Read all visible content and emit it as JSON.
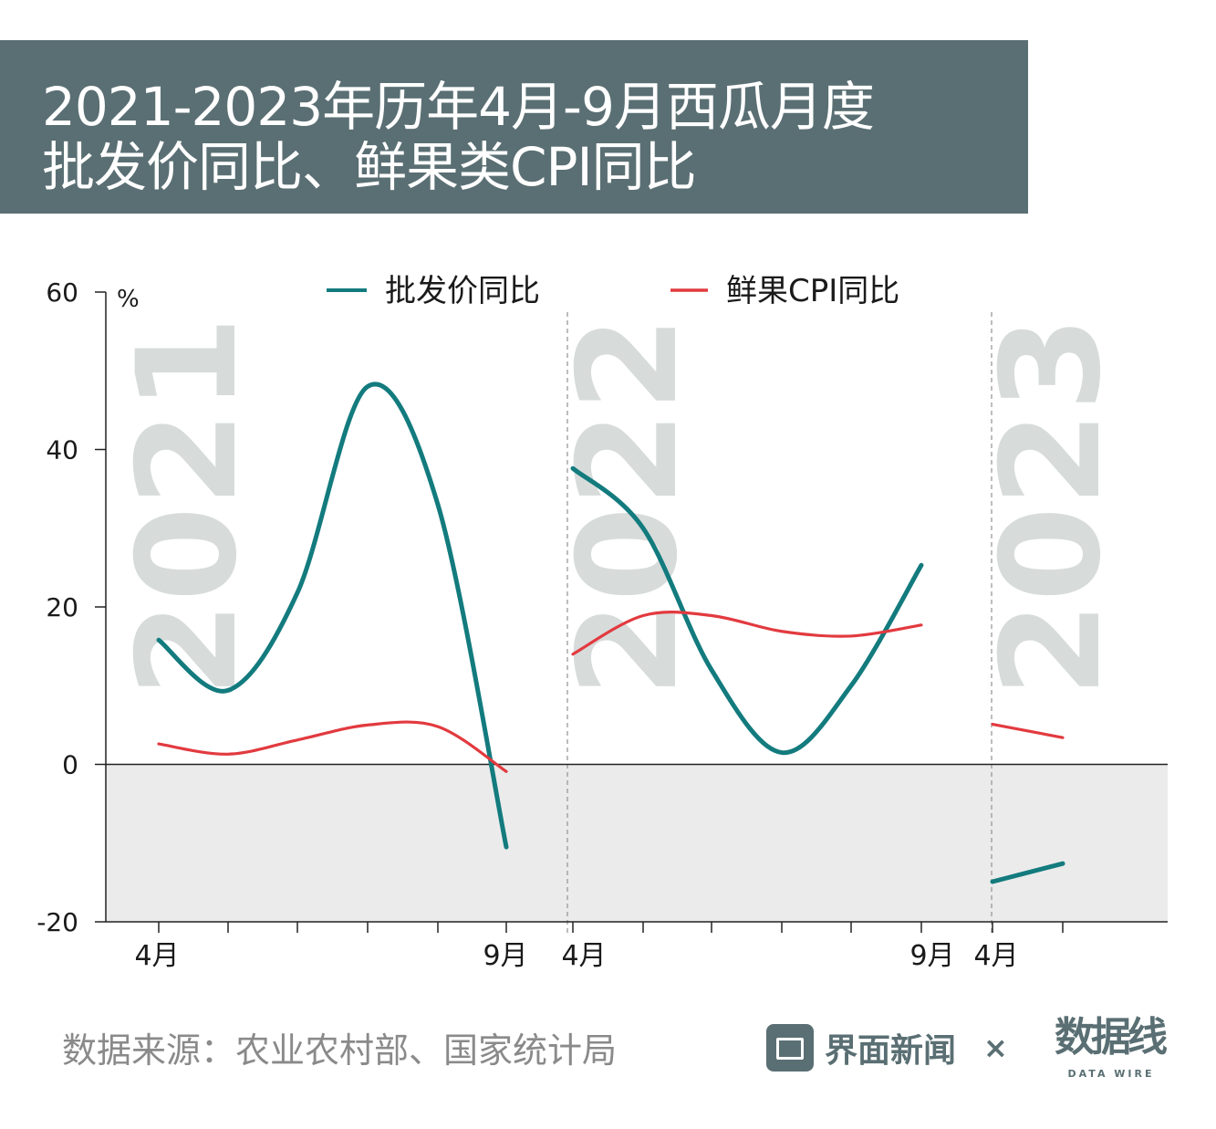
{
  "title_lines": [
    "2021-2023年历年4月-9月西瓜月度",
    "批发价同比、鲜果类CPI同比"
  ],
  "source": "数据来源：农业农村部、国家统计局",
  "brand": {
    "name": "界面新闻",
    "x": "×",
    "datawire": "数据线",
    "datawire_sub": "DATA WIRE"
  },
  "colors": {
    "teal": "#137b7e",
    "red": "#e23a3f",
    "title_bg": "#5a6f73"
  },
  "chart_data": {
    "type": "line",
    "title": "2021-2023年历年4月-9月西瓜月度批发价同比、鲜果类CPI同比",
    "ylabel": "%",
    "ylim": [
      -20,
      60
    ],
    "yticks": [
      -20,
      0,
      20,
      40,
      60
    ],
    "legend": "top",
    "panels": [
      {
        "year": "2021",
        "x_labels": [
          "4月",
          "",
          "",
          "",
          "",
          "9月"
        ]
      },
      {
        "year": "2022",
        "x_labels": [
          "4月",
          "",
          "",
          "",
          "",
          "9月"
        ]
      },
      {
        "year": "2023",
        "x_labels": [
          "4月",
          ""
        ]
      }
    ],
    "series": [
      {
        "name": "批发价同比",
        "color": "#137b7e",
        "values": [
          [
            15.8,
            9.4,
            21.8,
            48.0,
            33.0,
            -10.5
          ],
          [
            37.6,
            30.0,
            12.0,
            1.5,
            10.0,
            25.3
          ],
          [
            -14.9,
            -12.6
          ]
        ]
      },
      {
        "name": "鲜果CPI同比",
        "color": "#e23a3f",
        "values": [
          [
            2.6,
            1.3,
            3.1,
            5.0,
            4.8,
            -0.9
          ],
          [
            14.0,
            18.9,
            18.9,
            16.9,
            16.3,
            17.7
          ],
          [
            5.1,
            3.4
          ]
        ]
      }
    ]
  }
}
